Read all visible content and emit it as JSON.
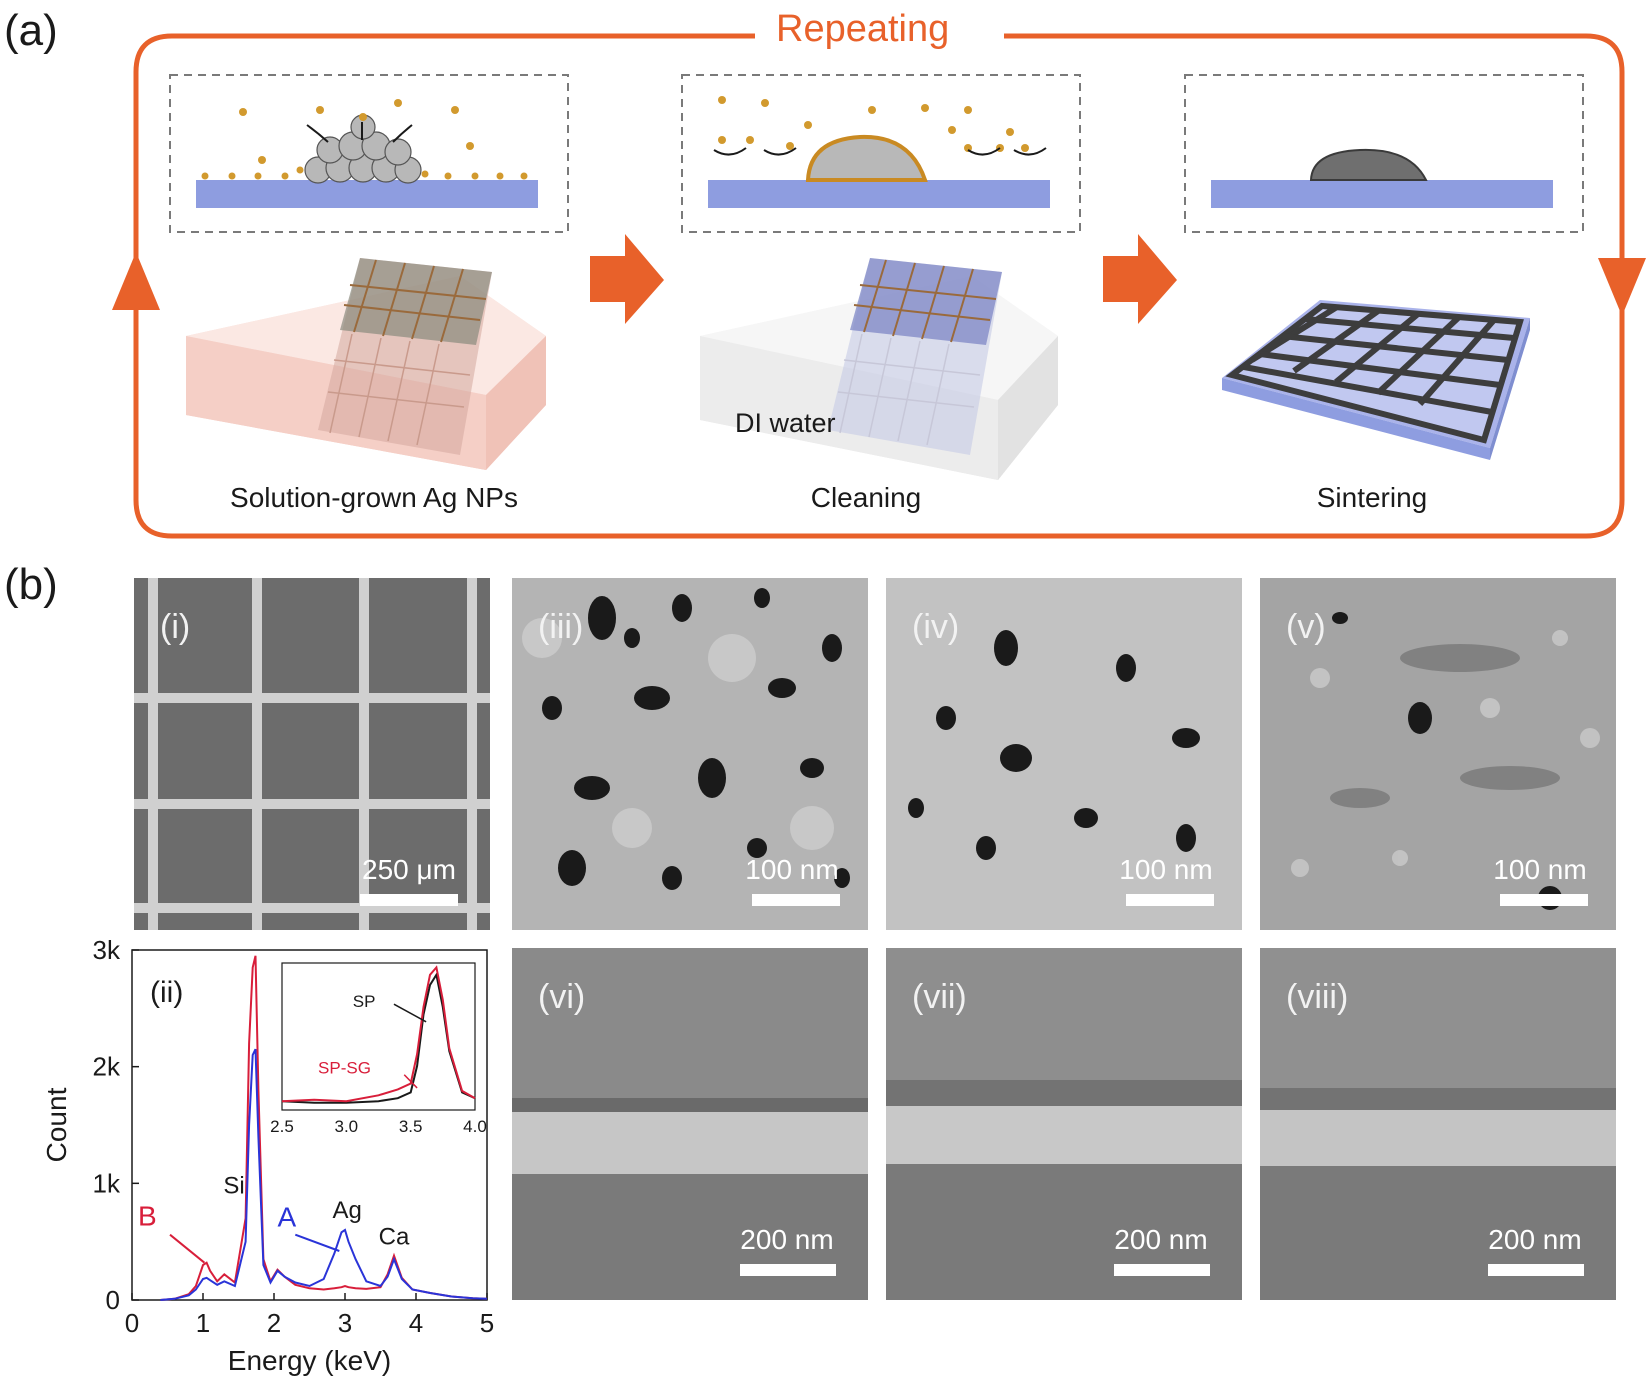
{
  "panel_a": {
    "letter": "(a)",
    "repeat_label": "Repeating",
    "steps": [
      {
        "label": "Solution-grown Ag NPs"
      },
      {
        "label": "Cleaning",
        "sublabel": "DI water"
      },
      {
        "label": "Sintering"
      }
    ]
  },
  "panel_b": {
    "letter": "(b)",
    "images": [
      {
        "roman": "(i)",
        "scale": "250 μm"
      },
      {
        "roman": "(iii)",
        "scale": "100 nm"
      },
      {
        "roman": "(iv)",
        "scale": "100 nm"
      },
      {
        "roman": "(v)",
        "scale": "100 nm"
      },
      {
        "roman": "(vi)",
        "scale": "200 nm"
      },
      {
        "roman": "(vii)",
        "scale": "200 nm"
      },
      {
        "roman": "(viii)",
        "scale": "200 nm"
      }
    ]
  },
  "colors": {
    "accent": "#e8612a",
    "substrate": "#8e9de0",
    "nanoparticle": "#d29a2e",
    "series_A": "#2a34d8",
    "series_B": "#d81e3a"
  },
  "chart_data": [
    {
      "type": "line",
      "panel": "(ii)",
      "xlabel": "Energy (keV)",
      "ylabel": "Count",
      "xlim": [
        0,
        5
      ],
      "ylim": [
        0,
        3000
      ],
      "xticks": [
        "0",
        "1",
        "2",
        "3",
        "4",
        "5"
      ],
      "yticks": [
        "0",
        "1k",
        "2k",
        "3k"
      ],
      "peak_labels": [
        "Si",
        "Ag",
        "Ca"
      ],
      "series": [
        {
          "name": "A",
          "color": "#2a34d8",
          "x": [
            0.4,
            0.6,
            0.8,
            0.9,
            1.0,
            1.05,
            1.1,
            1.2,
            1.3,
            1.45,
            1.6,
            1.65,
            1.7,
            1.74,
            1.78,
            1.85,
            1.95,
            2.05,
            2.15,
            2.3,
            2.5,
            2.7,
            2.85,
            2.95,
            3.0,
            3.05,
            3.15,
            3.3,
            3.5,
            3.6,
            3.69,
            3.8,
            3.95,
            4.2,
            4.5,
            4.8,
            5.0
          ],
          "y": [
            0,
            10,
            40,
            90,
            180,
            190,
            170,
            130,
            160,
            120,
            500,
            1500,
            2100,
            2150,
            1400,
            300,
            150,
            250,
            200,
            150,
            120,
            180,
            400,
            580,
            600,
            500,
            350,
            160,
            120,
            200,
            350,
            180,
            90,
            60,
            30,
            15,
            10
          ]
        },
        {
          "name": "B",
          "color": "#d81e3a",
          "x": [
            0.4,
            0.6,
            0.8,
            0.9,
            1.0,
            1.05,
            1.1,
            1.2,
            1.3,
            1.45,
            1.6,
            1.65,
            1.7,
            1.74,
            1.78,
            1.85,
            1.95,
            2.05,
            2.15,
            2.3,
            2.5,
            2.7,
            2.85,
            2.95,
            3.0,
            3.05,
            3.15,
            3.3,
            3.5,
            3.6,
            3.69,
            3.8,
            3.95,
            4.2,
            4.5,
            4.8,
            5.0
          ],
          "y": [
            0,
            10,
            50,
            120,
            300,
            320,
            250,
            160,
            220,
            150,
            700,
            2200,
            2850,
            2950,
            1800,
            350,
            160,
            260,
            200,
            130,
            100,
            90,
            100,
            110,
            120,
            110,
            100,
            95,
            110,
            220,
            380,
            190,
            90,
            60,
            30,
            15,
            10
          ]
        }
      ]
    },
    {
      "type": "line",
      "panel": "(ii) inset",
      "xlim": [
        2.5,
        4.0
      ],
      "xticks": [
        "2.5",
        "3.0",
        "3.5",
        "4.0"
      ],
      "series": [
        {
          "name": "SP",
          "color": "#1a1a1a",
          "x": [
            2.5,
            2.75,
            3.0,
            3.25,
            3.4,
            3.5,
            3.55,
            3.6,
            3.65,
            3.7,
            3.75,
            3.8,
            3.9,
            4.0
          ],
          "y": [
            0.06,
            0.05,
            0.05,
            0.06,
            0.08,
            0.12,
            0.3,
            0.65,
            0.85,
            0.92,
            0.7,
            0.4,
            0.12,
            0.08
          ]
        },
        {
          "name": "SP-SG",
          "color": "#d81e3a",
          "x": [
            2.5,
            2.75,
            3.0,
            3.25,
            3.4,
            3.5,
            3.55,
            3.6,
            3.65,
            3.7,
            3.75,
            3.8,
            3.9,
            4.0
          ],
          "y": [
            0.06,
            0.07,
            0.06,
            0.1,
            0.14,
            0.18,
            0.38,
            0.7,
            0.92,
            0.97,
            0.75,
            0.42,
            0.13,
            0.08
          ]
        }
      ]
    }
  ]
}
